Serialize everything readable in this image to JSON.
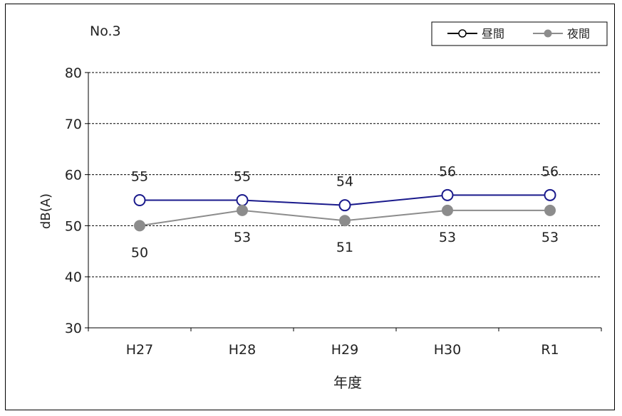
{
  "chart_data": {
    "type": "line",
    "title": "No.3",
    "xlabel": "年度",
    "ylabel": "dB(A)",
    "categories": [
      "H27",
      "H28",
      "H29",
      "H30",
      "R1"
    ],
    "ylim": [
      30,
      80
    ],
    "yticks": [
      30,
      40,
      50,
      60,
      70,
      80
    ],
    "grid": true,
    "legend_position": "top-right",
    "series": [
      {
        "name": "昼間",
        "values": [
          55,
          55,
          54,
          56,
          56
        ],
        "color": "#1a1a8c",
        "marker": "open-circle",
        "label_position": "above"
      },
      {
        "name": "夜間",
        "values": [
          50,
          53,
          51,
          53,
          53
        ],
        "color": "#8c8c8c",
        "marker": "filled-circle",
        "label_position": "below"
      }
    ]
  }
}
